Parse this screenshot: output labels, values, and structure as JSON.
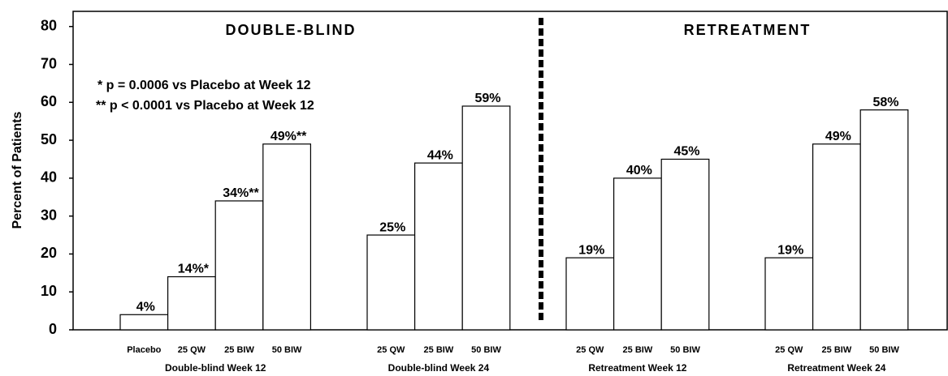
{
  "chart_data": {
    "type": "bar",
    "ylabel": "Percent of Patients",
    "sections": [
      "DOUBLE-BLIND",
      "RETREATMENT"
    ],
    "annotations": [
      "* p = 0.0006 vs Placebo at Week 12",
      "** p < 0.0001 vs Placebo at Week 12"
    ],
    "ylim": [
      0,
      84
    ],
    "yticks": [
      0,
      10,
      20,
      30,
      40,
      50,
      60,
      70,
      80
    ],
    "color": "#ffffff",
    "groups": [
      {
        "label": "Double-blind Week 12",
        "categories": [
          "Placebo",
          "25 QW",
          "25 BIW",
          "50 BIW"
        ],
        "values": [
          4,
          14,
          34,
          49
        ],
        "value_labels": [
          "4%",
          "14%*",
          "34%**",
          "49%**"
        ]
      },
      {
        "label": "Double-blind Week 24",
        "categories": [
          "25 QW",
          "25 BIW",
          "50 BIW"
        ],
        "values": [
          25,
          44,
          59
        ],
        "value_labels": [
          "25%",
          "44%",
          "59%"
        ]
      },
      {
        "label": "Retreatment Week 12",
        "categories": [
          "25 QW",
          "25 BIW",
          "50 BIW"
        ],
        "values": [
          19,
          40,
          45
        ],
        "value_labels": [
          "19%",
          "40%",
          "45%"
        ]
      },
      {
        "label": "Retreatment Week 24",
        "categories": [
          "25 QW",
          "25 BIW",
          "50 BIW"
        ],
        "values": [
          19,
          49,
          58
        ],
        "value_labels": [
          "19%",
          "49%",
          "58%"
        ]
      }
    ]
  }
}
